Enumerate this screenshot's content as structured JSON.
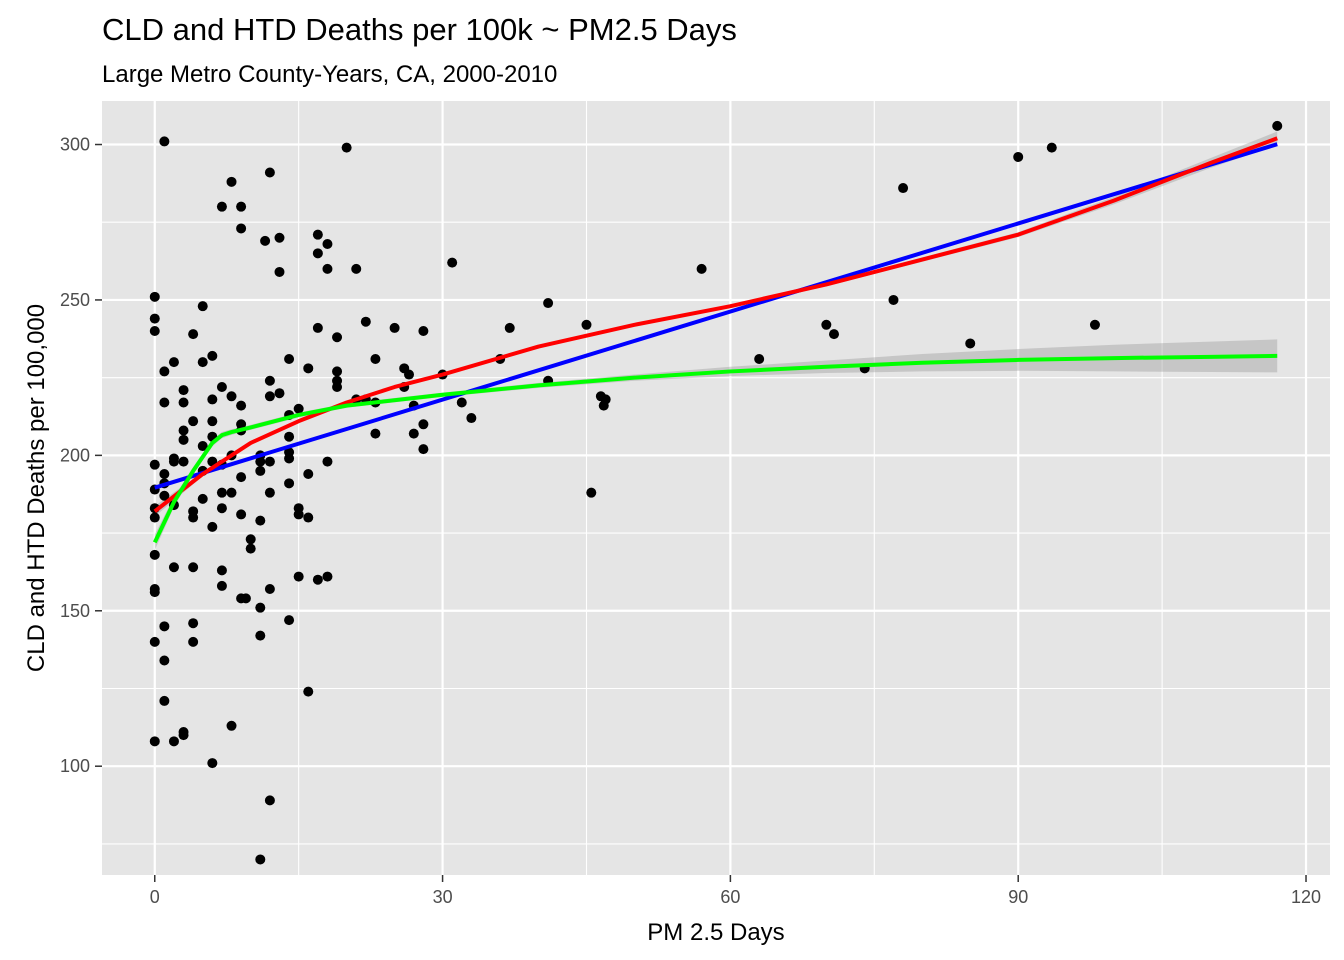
{
  "chart_data": {
    "type": "scatter",
    "title": "CLD and HTD Deaths per 100k ~ PM2.5 Days",
    "subtitle": "Large Metro County-Years, CA, 2000-2010",
    "xlabel": "PM 2.5 Days",
    "ylabel": "CLD and HTD Deaths per 100,000",
    "xlim": [
      -5.5,
      122.5
    ],
    "ylim": [
      65,
      314
    ],
    "x_ticks": [
      0,
      30,
      60,
      90,
      120
    ],
    "y_ticks": [
      100,
      150,
      200,
      250,
      300
    ],
    "grid": true,
    "panel_background": "#e5e5e5",
    "grid_color": "#ffffff",
    "point_color": "#000000",
    "points": [
      [
        0,
        251
      ],
      [
        0,
        244
      ],
      [
        0,
        240
      ],
      [
        0,
        197
      ],
      [
        0,
        189
      ],
      [
        0,
        183
      ],
      [
        0,
        180
      ],
      [
        0,
        168
      ],
      [
        0,
        157
      ],
      [
        0,
        156
      ],
      [
        0,
        140
      ],
      [
        0,
        108
      ],
      [
        1,
        301
      ],
      [
        1,
        227
      ],
      [
        1,
        217
      ],
      [
        1,
        194
      ],
      [
        1,
        191
      ],
      [
        1,
        187
      ],
      [
        1,
        145
      ],
      [
        1,
        134
      ],
      [
        1,
        121
      ],
      [
        2,
        230
      ],
      [
        2,
        199
      ],
      [
        2,
        198
      ],
      [
        2,
        184
      ],
      [
        2,
        164
      ],
      [
        2,
        108
      ],
      [
        3,
        221
      ],
      [
        3,
        217
      ],
      [
        3,
        208
      ],
      [
        3,
        205
      ],
      [
        3,
        198
      ],
      [
        3,
        110
      ],
      [
        3,
        111
      ],
      [
        4,
        239
      ],
      [
        4,
        211
      ],
      [
        4,
        182
      ],
      [
        4,
        180
      ],
      [
        4,
        164
      ],
      [
        4,
        146
      ],
      [
        4,
        140
      ],
      [
        5,
        248
      ],
      [
        5,
        230
      ],
      [
        5,
        203
      ],
      [
        5,
        195
      ],
      [
        5,
        186
      ],
      [
        6,
        232
      ],
      [
        6,
        218
      ],
      [
        6,
        211
      ],
      [
        6,
        206
      ],
      [
        6,
        198
      ],
      [
        6,
        177
      ],
      [
        6,
        101
      ],
      [
        7,
        280
      ],
      [
        7,
        222
      ],
      [
        7,
        197
      ],
      [
        7,
        188
      ],
      [
        7,
        183
      ],
      [
        7,
        163
      ],
      [
        7,
        158
      ],
      [
        8,
        288
      ],
      [
        8,
        219
      ],
      [
        8,
        200
      ],
      [
        8,
        188
      ],
      [
        8,
        113
      ],
      [
        9,
        280
      ],
      [
        9,
        273
      ],
      [
        9,
        216
      ],
      [
        9,
        210
      ],
      [
        9,
        208
      ],
      [
        9,
        193
      ],
      [
        9,
        181
      ],
      [
        9,
        154
      ],
      [
        9.5,
        154
      ],
      [
        10,
        173
      ],
      [
        10,
        170
      ],
      [
        11,
        200
      ],
      [
        11,
        198
      ],
      [
        11,
        195
      ],
      [
        11,
        179
      ],
      [
        11,
        151
      ],
      [
        11,
        142
      ],
      [
        11,
        70
      ],
      [
        11.5,
        269
      ],
      [
        12,
        291
      ],
      [
        12,
        224
      ],
      [
        12,
        219
      ],
      [
        12,
        198
      ],
      [
        12,
        188
      ],
      [
        12,
        157
      ],
      [
        12,
        89
      ],
      [
        13,
        270
      ],
      [
        13,
        259
      ],
      [
        13,
        220
      ],
      [
        14,
        231
      ],
      [
        14,
        213
      ],
      [
        14,
        206
      ],
      [
        14,
        201
      ],
      [
        14,
        199
      ],
      [
        14,
        191
      ],
      [
        14,
        147
      ],
      [
        15,
        215
      ],
      [
        15,
        183
      ],
      [
        15,
        181
      ],
      [
        15,
        161
      ],
      [
        16,
        228
      ],
      [
        16,
        194
      ],
      [
        16,
        180
      ],
      [
        16,
        124
      ],
      [
        17,
        271
      ],
      [
        17,
        265
      ],
      [
        17,
        241
      ],
      [
        17,
        160
      ],
      [
        18,
        268
      ],
      [
        18,
        260
      ],
      [
        18,
        198
      ],
      [
        18,
        161
      ],
      [
        19,
        238
      ],
      [
        19,
        227
      ],
      [
        19,
        224
      ],
      [
        19,
        222
      ],
      [
        20,
        299
      ],
      [
        21,
        260
      ],
      [
        21,
        218
      ],
      [
        22,
        243
      ],
      [
        22,
        218
      ],
      [
        23,
        231
      ],
      [
        23,
        217
      ],
      [
        23,
        207
      ],
      [
        25,
        241
      ],
      [
        26,
        228
      ],
      [
        26,
        222
      ],
      [
        26.5,
        226
      ],
      [
        27,
        216
      ],
      [
        27,
        207
      ],
      [
        28,
        240
      ],
      [
        28,
        210
      ],
      [
        28,
        202
      ],
      [
        30,
        226
      ],
      [
        31,
        262
      ],
      [
        32,
        217
      ],
      [
        33,
        212
      ],
      [
        36,
        231
      ],
      [
        37,
        241
      ],
      [
        41,
        249
      ],
      [
        41,
        224
      ],
      [
        45,
        242
      ],
      [
        45.5,
        188
      ],
      [
        46.5,
        219
      ],
      [
        46.8,
        216
      ],
      [
        47,
        218
      ],
      [
        57,
        260
      ],
      [
        63,
        231
      ],
      [
        70,
        242
      ],
      [
        70.8,
        239
      ],
      [
        74,
        228
      ],
      [
        77,
        250
      ],
      [
        78,
        286
      ],
      [
        85,
        236
      ],
      [
        90,
        296
      ],
      [
        93.5,
        299
      ],
      [
        98,
        242
      ],
      [
        117,
        306
      ]
    ],
    "series": [
      {
        "name": "",
        "type": "line",
        "color": "#0000ff",
        "x": [
          0,
          117
        ],
        "y": [
          189.6,
          300.1
        ]
      },
      {
        "name": "",
        "type": "line",
        "color": "#ff0000",
        "x": [
          0,
          5,
          10,
          15,
          20,
          25,
          30,
          40,
          50,
          60,
          70,
          80,
          90,
          100,
          110,
          117
        ],
        "y": [
          182,
          194,
          204,
          211,
          217,
          222,
          226,
          235,
          242,
          248,
          255,
          263,
          271,
          282,
          294,
          302
        ],
        "band": {
          "lower": [
            180.3,
            193.3,
            203.5,
            210.6,
            216.6,
            221.6,
            225.6,
            234.6,
            241.6,
            247.6,
            254.4,
            262.3,
            270.2,
            280.8,
            292.4,
            299.8
          ],
          "upper": [
            183.7,
            194.7,
            204.5,
            211.4,
            217.4,
            222.4,
            226.4,
            235.4,
            242.4,
            248.4,
            255.6,
            263.7,
            271.8,
            283.2,
            295.6,
            304.2
          ]
        }
      },
      {
        "name": "",
        "type": "line",
        "color": "#00ff00",
        "x": [
          0,
          2,
          4,
          6,
          7,
          8,
          10,
          15,
          20,
          30,
          40,
          50,
          60,
          70,
          80,
          90,
          100,
          110,
          117
        ],
        "y": [
          172,
          185,
          195,
          204,
          206.5,
          207.5,
          209,
          213,
          216,
          219.5,
          222.5,
          225,
          227,
          228.5,
          229.8,
          230.7,
          231.3,
          231.7,
          232
        ],
        "band": {
          "lower": [
            169.5,
            183.4,
            193.8,
            202.9,
            205.5,
            206.6,
            208.2,
            212.2,
            215.3,
            218.8,
            221.7,
            224,
            225.5,
            226.5,
            227,
            227.2,
            227,
            226.8,
            226.7
          ],
          "upper": [
            174.5,
            186.6,
            196.2,
            205.1,
            207.5,
            208.4,
            209.8,
            213.8,
            216.7,
            220.2,
            223.3,
            226,
            228.5,
            230.5,
            232.6,
            234.2,
            235.6,
            236.6,
            237.3
          ]
        }
      }
    ]
  }
}
